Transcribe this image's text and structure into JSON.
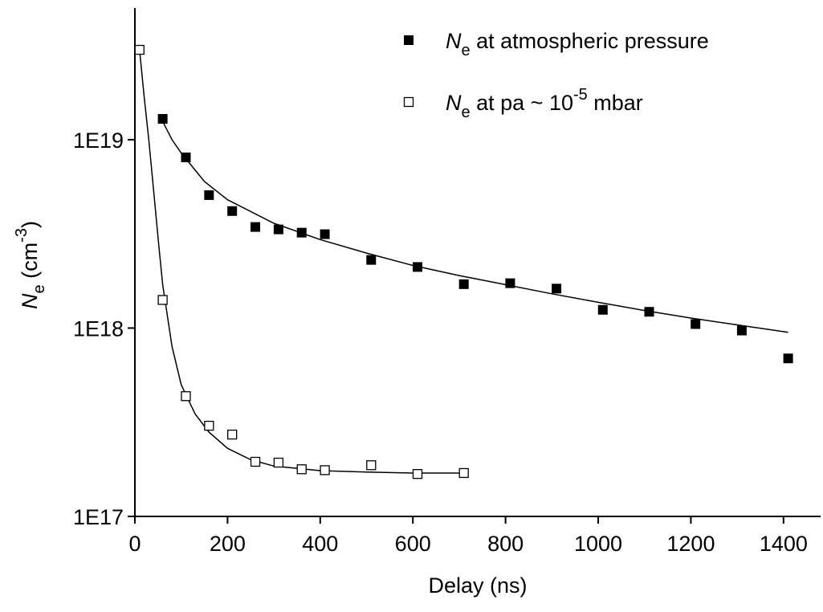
{
  "chart_data": {
    "type": "scatter",
    "x_label": "Delay (ns)",
    "y_label": [
      {
        "text": "N",
        "style": "italic"
      },
      {
        "text": "e",
        "style": "sub"
      },
      {
        "text": " (cm",
        "style": "normal"
      },
      {
        "text": "-3",
        "style": "sup"
      },
      {
        "text": ")",
        "style": "normal"
      }
    ],
    "xlim": [
      0,
      1480
    ],
    "xticks": [
      0,
      200,
      400,
      600,
      800,
      1000,
      1200,
      1400
    ],
    "ylim": [
      1e+17,
      5e+19
    ],
    "yscale": "log",
    "yticks": [
      {
        "value": 1e+17,
        "label": "1E17"
      },
      {
        "value": 1e+18,
        "label": "1E18"
      },
      {
        "value": 1e+19,
        "label": "1E19"
      }
    ],
    "legend": "top-right",
    "series": [
      {
        "name": [
          {
            "text": "N",
            "style": "italic"
          },
          {
            "text": "e",
            "style": "sub"
          },
          {
            "text": " at atmospheric pressure",
            "style": "normal"
          }
        ],
        "marker": "filled-square",
        "color": "#000000",
        "x": [
          60,
          110,
          160,
          210,
          260,
          310,
          360,
          410,
          510,
          610,
          710,
          810,
          910,
          1010,
          1110,
          1210,
          1310,
          1410
        ],
        "values": [
          1.29e+19,
          8.06e+18,
          5.08e+18,
          4.18e+18,
          3.44e+18,
          3.34e+18,
          3.21e+18,
          3.15e+18,
          2.3e+18,
          2.11e+18,
          1.71e+18,
          1.73e+18,
          1.62e+18,
          1.25e+18,
          1.22e+18,
          1.05e+18,
          9.7e+17,
          6.9e+17
        ]
      },
      {
        "name": [
          {
            "text": "N",
            "style": "italic"
          },
          {
            "text": "e",
            "style": "sub"
          },
          {
            "text": " at pa ~ 10",
            "style": "normal"
          },
          {
            "text": "-5",
            "style": "sup"
          },
          {
            "text": " mbar",
            "style": "normal"
          }
        ],
        "marker": "open-square",
        "color": "#000000",
        "x": [
          10,
          60,
          110,
          160,
          210,
          260,
          310,
          360,
          410,
          510,
          610,
          710
        ],
        "values": [
          3e+19,
          1.41e+18,
          4.35e+17,
          3.03e+17,
          2.72e+17,
          1.95e+17,
          1.93e+17,
          1.78e+17,
          1.76e+17,
          1.87e+17,
          1.68e+17,
          1.7e+17
        ]
      }
    ],
    "curves": [
      {
        "color": "#000000",
        "x": [
          60,
          80,
          100,
          150,
          200,
          300,
          400,
          500,
          600,
          700,
          800,
          900,
          1000,
          1100,
          1200,
          1300,
          1410
        ],
        "values": [
          1.25e+19,
          1e+19,
          8.5e+18,
          6e+18,
          4.8e+18,
          3.6e+18,
          2.95e+18,
          2.5e+18,
          2.15e+18,
          1.9e+18,
          1.7e+18,
          1.52e+18,
          1.37e+18,
          1.24e+18,
          1.13e+18,
          1.04e+18,
          9.5e+17
        ]
      },
      {
        "color": "#000000",
        "x": [
          10,
          20,
          30,
          40,
          50,
          60,
          80,
          100,
          130,
          160,
          200,
          250,
          300,
          400,
          500,
          600,
          710
        ],
        "values": [
          3e+19,
          1.7e+19,
          1e+19,
          5.5e+18,
          3e+18,
          1.7e+18,
          8e+17,
          5e+17,
          3.5e+17,
          2.8e+17,
          2.3e+17,
          2e+17,
          1.85e+17,
          1.75e+17,
          1.72e+17,
          1.7e+17,
          1.7e+17
        ]
      }
    ]
  }
}
